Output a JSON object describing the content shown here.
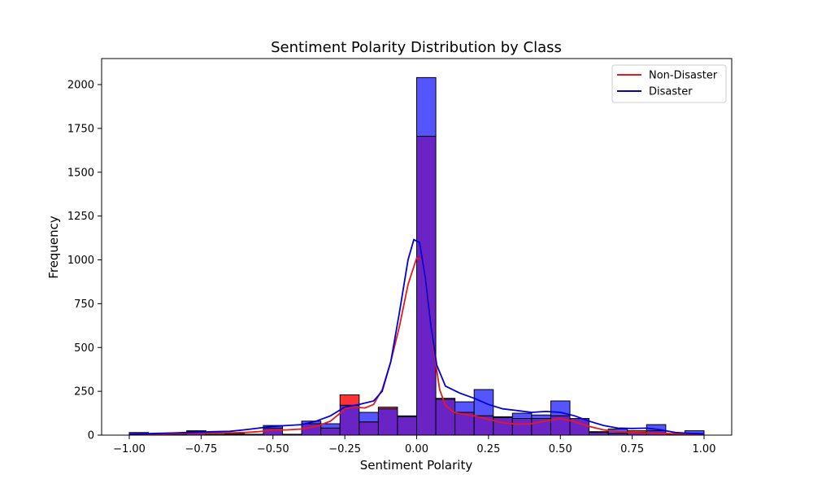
{
  "chart_data": {
    "type": "bar",
    "title": "Sentiment Polarity Distribution by Class",
    "xlabel": "Sentiment Polarity",
    "ylabel": "Frequency",
    "xlim": [
      -1.0,
      1.0
    ],
    "ylim": [
      0,
      2150
    ],
    "x_ticks": [
      -1.0,
      -0.75,
      -0.5,
      -0.25,
      0.0,
      0.25,
      0.5,
      0.75,
      1.0
    ],
    "x_tick_labels": [
      "−1.00",
      "−0.75",
      "−0.50",
      "−0.25",
      "0.00",
      "0.25",
      "0.50",
      "0.75",
      "1.00"
    ],
    "y_ticks": [
      0,
      250,
      500,
      750,
      1000,
      1250,
      1500,
      1750,
      2000
    ],
    "y_tick_labels": [
      "0",
      "250",
      "500",
      "750",
      "1000",
      "1250",
      "1500",
      "1750",
      "2000"
    ],
    "bin_edges": [
      -1.0,
      -0.9333,
      -0.8667,
      -0.8,
      -0.7333,
      -0.6667,
      -0.6,
      -0.5333,
      -0.4667,
      -0.4,
      -0.3333,
      -0.2667,
      -0.2,
      -0.1333,
      -0.0667,
      0.0,
      0.0667,
      0.1333,
      0.2,
      0.2667,
      0.3333,
      0.4,
      0.4667,
      0.5333,
      0.6,
      0.6667,
      0.7333,
      0.8,
      0.8667,
      0.9333,
      1.0
    ],
    "series": [
      {
        "name": "Non-Disaster",
        "bar_color": "#ff3333",
        "line_color": "#e41a1c",
        "values": [
          15,
          5,
          5,
          25,
          5,
          10,
          5,
          40,
          5,
          65,
          40,
          230,
          75,
          160,
          105,
          1705,
          210,
          130,
          110,
          100,
          95,
          95,
          110,
          95,
          20,
          10,
          25,
          25,
          5,
          5
        ],
        "kde": [
          [
            -1.0,
            5
          ],
          [
            -0.95,
            5
          ],
          [
            -0.9,
            6
          ],
          [
            -0.85,
            8
          ],
          [
            -0.8,
            10
          ],
          [
            -0.75,
            12
          ],
          [
            -0.7,
            12
          ],
          [
            -0.65,
            13
          ],
          [
            -0.6,
            15
          ],
          [
            -0.55,
            20
          ],
          [
            -0.5,
            28
          ],
          [
            -0.45,
            30
          ],
          [
            -0.4,
            35
          ],
          [
            -0.35,
            50
          ],
          [
            -0.3,
            80
          ],
          [
            -0.27,
            120
          ],
          [
            -0.25,
            150
          ],
          [
            -0.22,
            160
          ],
          [
            -0.18,
            155
          ],
          [
            -0.15,
            175
          ],
          [
            -0.12,
            260
          ],
          [
            -0.09,
            420
          ],
          [
            -0.06,
            620
          ],
          [
            -0.03,
            860
          ],
          [
            0.0,
            1010
          ],
          [
            0.02,
            1000
          ],
          [
            0.04,
            780
          ],
          [
            0.06,
            480
          ],
          [
            0.08,
            260
          ],
          [
            0.1,
            170
          ],
          [
            0.13,
            130
          ],
          [
            0.16,
            120
          ],
          [
            0.2,
            110
          ],
          [
            0.25,
            90
          ],
          [
            0.3,
            70
          ],
          [
            0.35,
            62
          ],
          [
            0.4,
            65
          ],
          [
            0.45,
            80
          ],
          [
            0.5,
            95
          ],
          [
            0.54,
            80
          ],
          [
            0.6,
            50
          ],
          [
            0.65,
            30
          ],
          [
            0.7,
            20
          ],
          [
            0.75,
            15
          ],
          [
            0.8,
            12
          ],
          [
            0.85,
            10
          ],
          [
            0.9,
            8
          ],
          [
            0.95,
            6
          ],
          [
            1.0,
            5
          ]
        ]
      },
      {
        "name": "Disaster",
        "bar_color": "#5555ff",
        "line_color": "#0000dd",
        "values": [
          5,
          5,
          5,
          20,
          5,
          5,
          5,
          55,
          5,
          80,
          65,
          170,
          130,
          150,
          110,
          2040,
          205,
          190,
          260,
          105,
          125,
          115,
          195,
          95,
          15,
          35,
          15,
          60,
          5,
          25
        ],
        "kde": [
          [
            -1.0,
            6
          ],
          [
            -0.95,
            8
          ],
          [
            -0.9,
            10
          ],
          [
            -0.85,
            12
          ],
          [
            -0.8,
            15
          ],
          [
            -0.75,
            17
          ],
          [
            -0.7,
            20
          ],
          [
            -0.65,
            22
          ],
          [
            -0.6,
            30
          ],
          [
            -0.55,
            40
          ],
          [
            -0.5,
            50
          ],
          [
            -0.45,
            55
          ],
          [
            -0.4,
            60
          ],
          [
            -0.35,
            80
          ],
          [
            -0.3,
            110
          ],
          [
            -0.25,
            160
          ],
          [
            -0.2,
            175
          ],
          [
            -0.15,
            195
          ],
          [
            -0.12,
            250
          ],
          [
            -0.09,
            420
          ],
          [
            -0.06,
            700
          ],
          [
            -0.03,
            1000
          ],
          [
            -0.01,
            1115
          ],
          [
            0.01,
            1100
          ],
          [
            0.03,
            900
          ],
          [
            0.05,
            620
          ],
          [
            0.07,
            400
          ],
          [
            0.1,
            280
          ],
          [
            0.15,
            240
          ],
          [
            0.2,
            210
          ],
          [
            0.25,
            175
          ],
          [
            0.3,
            150
          ],
          [
            0.35,
            140
          ],
          [
            0.4,
            130
          ],
          [
            0.45,
            135
          ],
          [
            0.5,
            130
          ],
          [
            0.55,
            110
          ],
          [
            0.6,
            80
          ],
          [
            0.65,
            55
          ],
          [
            0.7,
            40
          ],
          [
            0.75,
            38
          ],
          [
            0.8,
            40
          ],
          [
            0.85,
            30
          ],
          [
            0.9,
            15
          ],
          [
            0.95,
            10
          ],
          [
            1.0,
            8
          ]
        ]
      }
    ],
    "overlap_color": "#6a24c6",
    "legend_placement": "top-right",
    "grid": false
  }
}
